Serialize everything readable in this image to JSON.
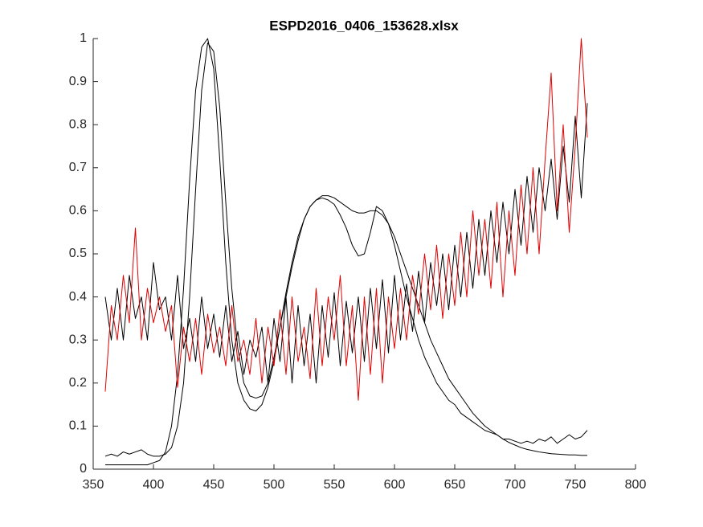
{
  "chart_data": {
    "type": "line",
    "title": "ESPD2016_0406_153628.xlsx",
    "x": [
      360,
      365,
      370,
      375,
      380,
      385,
      390,
      395,
      400,
      405,
      410,
      415,
      420,
      425,
      430,
      435,
      440,
      445,
      450,
      455,
      460,
      465,
      470,
      475,
      480,
      485,
      490,
      495,
      500,
      505,
      510,
      515,
      520,
      525,
      530,
      535,
      540,
      545,
      550,
      555,
      560,
      565,
      570,
      575,
      580,
      585,
      590,
      595,
      600,
      605,
      610,
      615,
      620,
      625,
      630,
      635,
      640,
      645,
      650,
      655,
      660,
      665,
      670,
      675,
      680,
      685,
      690,
      695,
      700,
      705,
      710,
      715,
      720,
      725,
      730,
      735,
      740,
      745,
      750,
      755,
      760
    ],
    "series": [
      {
        "color": "#000000",
        "values": [
          0.01,
          0.01,
          0.01,
          0.01,
          0.01,
          0.01,
          0.01,
          0.01,
          0.015,
          0.02,
          0.04,
          0.1,
          0.22,
          0.42,
          0.67,
          0.88,
          0.98,
          1.0,
          0.93,
          0.72,
          0.48,
          0.3,
          0.2,
          0.16,
          0.14,
          0.135,
          0.15,
          0.19,
          0.25,
          0.33,
          0.41,
          0.48,
          0.54,
          0.58,
          0.61,
          0.625,
          0.635,
          0.635,
          0.63,
          0.62,
          0.61,
          0.6,
          0.595,
          0.595,
          0.6,
          0.6,
          0.59,
          0.57,
          0.54,
          0.5,
          0.46,
          0.42,
          0.38,
          0.34,
          0.3,
          0.27,
          0.24,
          0.21,
          0.19,
          0.17,
          0.15,
          0.13,
          0.115,
          0.1,
          0.09,
          0.08,
          0.07,
          0.062,
          0.056,
          0.05,
          0.046,
          0.043,
          0.04,
          0.038,
          0.036,
          0.035,
          0.034,
          0.033,
          0.033,
          0.032,
          0.032
        ]
      },
      {
        "color": "#000000",
        "values": [
          0.03,
          0.035,
          0.03,
          0.04,
          0.035,
          0.04,
          0.045,
          0.035,
          0.03,
          0.03,
          0.035,
          0.05,
          0.1,
          0.2,
          0.4,
          0.65,
          0.88,
          0.99,
          0.97,
          0.84,
          0.62,
          0.42,
          0.28,
          0.2,
          0.17,
          0.165,
          0.17,
          0.2,
          0.26,
          0.33,
          0.4,
          0.47,
          0.53,
          0.58,
          0.61,
          0.625,
          0.63,
          0.625,
          0.615,
          0.59,
          0.56,
          0.52,
          0.495,
          0.5,
          0.55,
          0.61,
          0.6,
          0.57,
          0.52,
          0.46,
          0.4,
          0.35,
          0.3,
          0.26,
          0.23,
          0.2,
          0.18,
          0.16,
          0.15,
          0.13,
          0.12,
          0.11,
          0.1,
          0.09,
          0.085,
          0.08,
          0.07,
          0.07,
          0.065,
          0.06,
          0.065,
          0.06,
          0.07,
          0.065,
          0.075,
          0.06,
          0.07,
          0.08,
          0.07,
          0.075,
          0.09
        ]
      },
      {
        "color": "#000000",
        "values": [
          0.4,
          0.3,
          0.42,
          0.3,
          0.45,
          0.35,
          0.4,
          0.3,
          0.48,
          0.37,
          0.4,
          0.3,
          0.45,
          0.28,
          0.35,
          0.25,
          0.4,
          0.28,
          0.36,
          0.26,
          0.38,
          0.25,
          0.32,
          0.22,
          0.3,
          0.26,
          0.33,
          0.2,
          0.35,
          0.25,
          0.4,
          0.2,
          0.38,
          0.24,
          0.36,
          0.2,
          0.38,
          0.26,
          0.41,
          0.24,
          0.39,
          0.27,
          0.4,
          0.25,
          0.42,
          0.28,
          0.44,
          0.27,
          0.45,
          0.3,
          0.43,
          0.32,
          0.46,
          0.34,
          0.48,
          0.38,
          0.5,
          0.37,
          0.52,
          0.4,
          0.55,
          0.42,
          0.58,
          0.45,
          0.6,
          0.48,
          0.62,
          0.5,
          0.65,
          0.52,
          0.68,
          0.55,
          0.7,
          0.6,
          0.72,
          0.58,
          0.75,
          0.62,
          0.82,
          0.63,
          0.85
        ]
      },
      {
        "color": "#e00000",
        "values": [
          0.18,
          0.38,
          0.3,
          0.45,
          0.34,
          0.56,
          0.3,
          0.42,
          0.34,
          0.4,
          0.32,
          0.38,
          0.19,
          0.33,
          0.25,
          0.35,
          0.22,
          0.36,
          0.27,
          0.33,
          0.24,
          0.38,
          0.25,
          0.3,
          0.22,
          0.35,
          0.2,
          0.33,
          0.24,
          0.37,
          0.22,
          0.4,
          0.25,
          0.33,
          0.21,
          0.42,
          0.24,
          0.4,
          0.3,
          0.45,
          0.24,
          0.38,
          0.16,
          0.4,
          0.22,
          0.42,
          0.2,
          0.4,
          0.28,
          0.42,
          0.3,
          0.45,
          0.36,
          0.5,
          0.37,
          0.52,
          0.35,
          0.5,
          0.38,
          0.55,
          0.4,
          0.6,
          0.45,
          0.58,
          0.42,
          0.62,
          0.4,
          0.6,
          0.45,
          0.66,
          0.5,
          0.7,
          0.5,
          0.72,
          0.92,
          0.6,
          0.8,
          0.55,
          0.75,
          1.0,
          0.77
        ]
      }
    ],
    "xlim": [
      350,
      800
    ],
    "xticks": [
      350,
      400,
      450,
      500,
      550,
      600,
      650,
      700,
      750,
      800
    ],
    "ylim": [
      0,
      1
    ],
    "yticks": [
      0,
      0.1,
      0.2,
      0.3,
      0.4,
      0.5,
      0.6,
      0.7,
      0.8,
      0.9,
      1
    ]
  }
}
